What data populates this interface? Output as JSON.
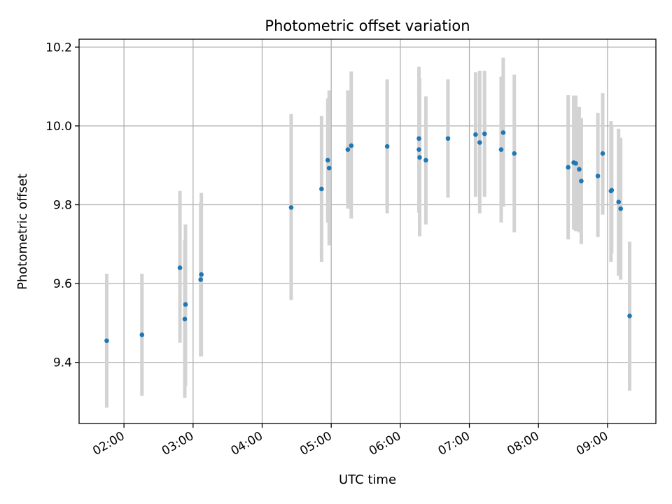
{
  "chart_data": {
    "type": "scatter",
    "title": "Photometric offset variation",
    "xlabel": "UTC time",
    "ylabel": "Photometric offset",
    "x_units": "hours UTC",
    "xlim": [
      1.35,
      9.7
    ],
    "ylim": [
      9.245,
      10.22
    ],
    "x_ticks": [
      {
        "value": 2,
        "label": "02:00"
      },
      {
        "value": 3,
        "label": "03:00"
      },
      {
        "value": 4,
        "label": "04:00"
      },
      {
        "value": 5,
        "label": "05:00"
      },
      {
        "value": 6,
        "label": "06:00"
      },
      {
        "value": 7,
        "label": "07:00"
      },
      {
        "value": 8,
        "label": "08:00"
      },
      {
        "value": 9,
        "label": "09:00"
      }
    ],
    "y_ticks": [
      {
        "value": 9.4,
        "label": "9.4"
      },
      {
        "value": 9.6,
        "label": "9.6"
      },
      {
        "value": 9.8,
        "label": "9.8"
      },
      {
        "value": 10.0,
        "label": "10.0"
      },
      {
        "value": 10.2,
        "label": "10.2"
      }
    ],
    "grid": true,
    "colors": {
      "point": "#1f77b4",
      "errorbar": "#d3d3d3"
    },
    "series": [
      {
        "points": [
          {
            "x": 1.75,
            "y": 9.455,
            "lo": 9.285,
            "hi": 9.625
          },
          {
            "x": 2.26,
            "y": 9.47,
            "lo": 9.315,
            "hi": 9.625
          },
          {
            "x": 2.81,
            "y": 9.64,
            "lo": 9.45,
            "hi": 9.835
          },
          {
            "x": 2.88,
            "y": 9.51,
            "lo": 9.31,
            "hi": 9.71
          },
          {
            "x": 2.89,
            "y": 9.547,
            "lo": 9.34,
            "hi": 9.75
          },
          {
            "x": 3.11,
            "y": 9.61,
            "lo": 9.415,
            "hi": 9.805
          },
          {
            "x": 3.12,
            "y": 9.623,
            "lo": 9.415,
            "hi": 9.83
          },
          {
            "x": 4.42,
            "y": 9.793,
            "lo": 9.558,
            "hi": 10.03
          },
          {
            "x": 4.86,
            "y": 9.84,
            "lo": 9.655,
            "hi": 10.025
          },
          {
            "x": 4.95,
            "y": 9.913,
            "lo": 9.755,
            "hi": 10.07
          },
          {
            "x": 4.97,
            "y": 9.893,
            "lo": 9.697,
            "hi": 10.09
          },
          {
            "x": 5.24,
            "y": 9.94,
            "lo": 9.79,
            "hi": 10.09
          },
          {
            "x": 5.29,
            "y": 9.95,
            "lo": 9.765,
            "hi": 10.138
          },
          {
            "x": 5.81,
            "y": 9.948,
            "lo": 9.778,
            "hi": 10.118
          },
          {
            "x": 6.27,
            "y": 9.968,
            "lo": 9.785,
            "hi": 10.15
          },
          {
            "x": 6.27,
            "y": 9.94,
            "lo": 9.78,
            "hi": 10.1
          },
          {
            "x": 6.28,
            "y": 9.92,
            "lo": 9.72,
            "hi": 10.12
          },
          {
            "x": 6.37,
            "y": 9.913,
            "lo": 9.75,
            "hi": 10.075
          },
          {
            "x": 6.69,
            "y": 9.968,
            "lo": 9.818,
            "hi": 10.118
          },
          {
            "x": 7.09,
            "y": 9.978,
            "lo": 9.82,
            "hi": 10.136
          },
          {
            "x": 7.15,
            "y": 9.958,
            "lo": 9.778,
            "hi": 10.14
          },
          {
            "x": 7.22,
            "y": 9.98,
            "lo": 9.82,
            "hi": 10.14
          },
          {
            "x": 7.46,
            "y": 9.94,
            "lo": 9.755,
            "hi": 10.125
          },
          {
            "x": 7.49,
            "y": 9.983,
            "lo": 9.795,
            "hi": 10.173
          },
          {
            "x": 7.65,
            "y": 9.93,
            "lo": 9.73,
            "hi": 10.13
          },
          {
            "x": 8.43,
            "y": 9.895,
            "lo": 9.712,
            "hi": 10.078
          },
          {
            "x": 8.51,
            "y": 9.907,
            "lo": 9.737,
            "hi": 10.077
          },
          {
            "x": 8.54,
            "y": 9.905,
            "lo": 9.733,
            "hi": 10.077
          },
          {
            "x": 8.59,
            "y": 9.89,
            "lo": 9.73,
            "hi": 10.048
          },
          {
            "x": 8.62,
            "y": 9.86,
            "lo": 9.7,
            "hi": 10.02
          },
          {
            "x": 8.86,
            "y": 9.873,
            "lo": 9.718,
            "hi": 10.033
          },
          {
            "x": 8.93,
            "y": 9.93,
            "lo": 9.775,
            "hi": 10.083
          },
          {
            "x": 9.05,
            "y": 9.835,
            "lo": 9.655,
            "hi": 10.012
          },
          {
            "x": 9.06,
            "y": 9.837,
            "lo": 9.678,
            "hi": 10.0
          },
          {
            "x": 9.16,
            "y": 9.807,
            "lo": 9.62,
            "hi": 9.993
          },
          {
            "x": 9.19,
            "y": 9.79,
            "lo": 9.61,
            "hi": 9.97
          },
          {
            "x": 9.32,
            "y": 9.518,
            "lo": 9.328,
            "hi": 9.706
          }
        ]
      }
    ]
  }
}
